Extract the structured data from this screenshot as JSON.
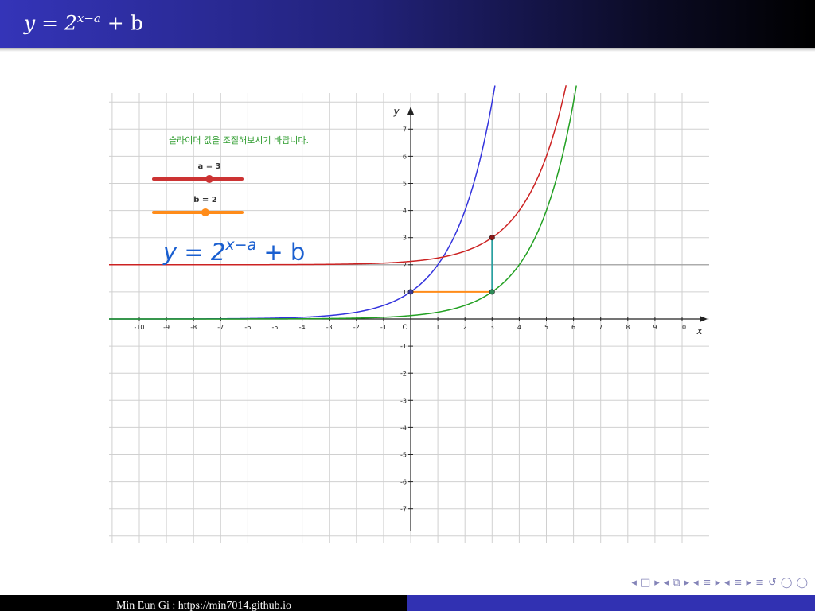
{
  "slide": {
    "title": {
      "base": "y = 2",
      "exponent": "x−a",
      "tail": " + b"
    },
    "footer": {
      "author_url": "Min Eun Gi : https://min7014.github.io"
    },
    "nav": [
      "◂",
      "□",
      "▸",
      "◂",
      "⧉",
      "▸",
      "◂",
      "≡",
      "▸",
      "◂",
      "≡",
      "▸",
      "≡",
      "↺",
      "◯",
      "◯"
    ]
  },
  "applet": {
    "instruction": "슬라이더 값을 조절해보시기 바랍니다.",
    "slider_a": {
      "label": "a = 3",
      "value": 3,
      "color": "#cc3333"
    },
    "slider_b": {
      "label": "b = 2",
      "value": 2,
      "color": "#ff8c1a"
    },
    "formula": {
      "base": "y = 2",
      "exponent": "x−a",
      "tail": " + b"
    }
  },
  "chart_data": {
    "type": "line",
    "xlabel": "x",
    "ylabel": "y",
    "origin_label": "O",
    "xlim": [
      -11,
      11
    ],
    "ylim": [
      -8,
      8
    ],
    "grid": true,
    "x_ticks": [
      -10,
      -9,
      -8,
      -7,
      -6,
      -5,
      -4,
      -3,
      -2,
      -1,
      1,
      2,
      3,
      4,
      5,
      6,
      7,
      8,
      9,
      10
    ],
    "y_ticks": [
      -7,
      -6,
      -5,
      -4,
      -3,
      -2,
      -1,
      1,
      2,
      3,
      4,
      5,
      6,
      7
    ],
    "parameters": {
      "a": 3,
      "b": 2
    },
    "asymptote": {
      "y": 2,
      "color": "#999999"
    },
    "series": [
      {
        "function": "2^x",
        "color": "#3333dd"
      },
      {
        "function": "2^(x-a)",
        "color": "#22a022"
      },
      {
        "function": "2^(x-a)+b",
        "color": "#cc2222"
      }
    ],
    "points": [
      {
        "x": 0,
        "y": 1,
        "color": "#3a3a99"
      },
      {
        "x": 3,
        "y": 1,
        "color": "#2e8b57"
      },
      {
        "x": 3,
        "y": 3,
        "color": "#8b1a1a"
      }
    ],
    "segments": [
      {
        "from": [
          0,
          1
        ],
        "to": [
          3,
          1
        ],
        "color": "#ff8c1a"
      },
      {
        "from": [
          3,
          1
        ],
        "to": [
          3,
          3
        ],
        "color": "#2aa0a0"
      }
    ]
  }
}
